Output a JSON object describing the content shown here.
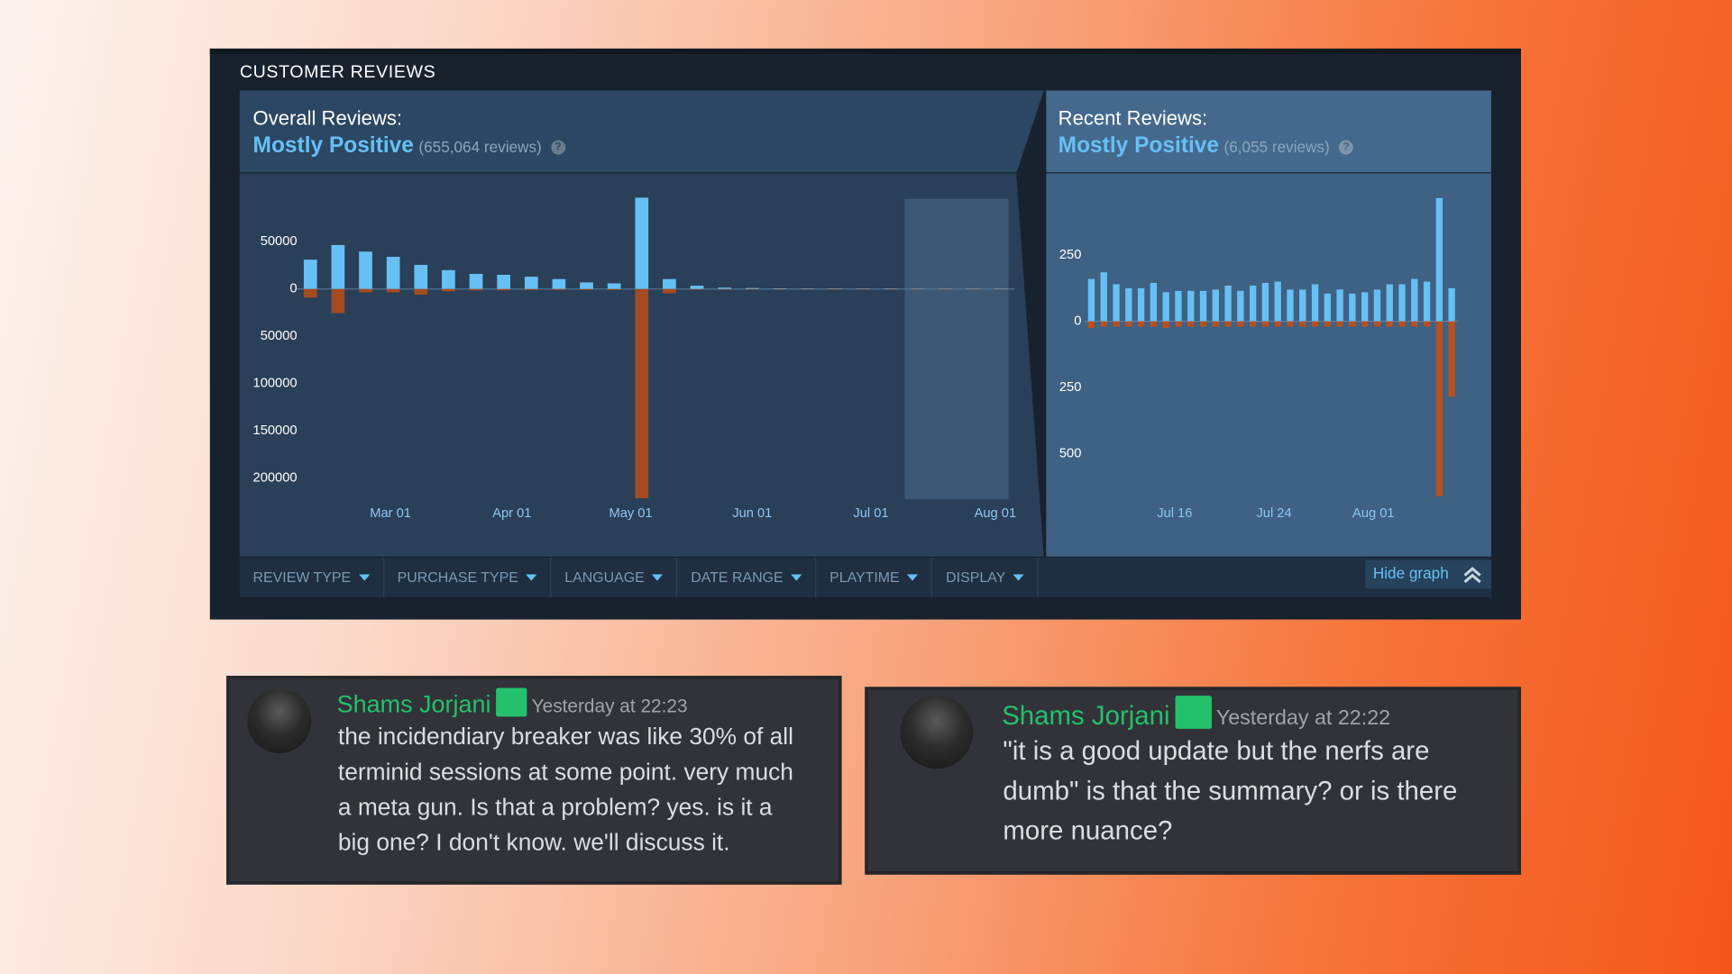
{
  "header": {
    "title": "CUSTOMER REVIEWS"
  },
  "summaries": [
    {
      "label": "Overall Reviews:",
      "rating": "Mostly Positive",
      "count": "(655,064 reviews)",
      "help": "?"
    },
    {
      "label": "Recent Reviews:",
      "rating": "Mostly Positive",
      "count": "(6,055 reviews)",
      "help": "?"
    }
  ],
  "chart_data": [
    {
      "type": "bar",
      "categories": [
        null,
        null,
        null,
        null,
        null,
        null,
        null,
        null,
        null,
        null,
        null,
        null,
        null,
        null,
        null,
        null,
        null,
        null,
        null,
        null,
        null,
        null,
        null,
        null,
        null,
        null
      ],
      "series": [
        {
          "color": "#66c0f4",
          "values": [
            31000,
            46500,
            39500,
            34000,
            25500,
            20000,
            16000,
            15000,
            13000,
            10500,
            7000,
            6000,
            96500,
            10500,
            3500,
            1500,
            1000,
            700,
            600,
            600,
            500,
            500,
            500,
            500,
            500,
            500
          ]
        },
        {
          "color": "#a44b22",
          "values": [
            -9000,
            -25500,
            -3500,
            -3500,
            -6000,
            -2500,
            -1500,
            -1500,
            -1000,
            -1000,
            -1000,
            -1000,
            -221000,
            -4500,
            -500,
            -300,
            -300,
            -300,
            -300,
            -300,
            -300,
            -300,
            -300,
            -300,
            -300,
            -300
          ]
        }
      ],
      "xlim": [
        -0.5,
        25.5
      ],
      "xticks": [
        {
          "value": 2.9,
          "label": "Mar 01"
        },
        {
          "value": 7.3,
          "label": "Apr 01"
        },
        {
          "value": 11.6,
          "label": "May 01"
        },
        {
          "value": 16,
          "label": "Jun 01"
        },
        {
          "value": 20.3,
          "label": "Jul 01"
        },
        {
          "value": 24.8,
          "label": "Aug 01"
        }
      ],
      "ylim": [
        -222000,
        100000
      ],
      "yticks": [
        50000,
        0,
        {
          "value": -50000,
          "label": "50000"
        },
        {
          "value": -100000,
          "label": "100000"
        },
        {
          "value": -150000,
          "label": "150000"
        },
        {
          "value": -200000,
          "label": "200000"
        }
      ]
    },
    {
      "type": "bar",
      "categories": [
        null,
        null,
        null,
        null,
        null,
        null,
        null,
        null,
        null,
        null,
        null,
        null,
        null,
        null,
        null,
        null,
        null,
        null,
        null,
        null,
        null,
        null,
        null,
        null,
        null,
        null,
        null,
        null,
        null,
        null
      ],
      "series": [
        {
          "color": "#66c0f4",
          "values": [
            160,
            185,
            140,
            125,
            125,
            145,
            110,
            115,
            115,
            115,
            120,
            135,
            115,
            135,
            145,
            150,
            120,
            120,
            140,
            105,
            120,
            105,
            110,
            120,
            140,
            140,
            160,
            150,
            465,
            125
          ]
        },
        {
          "color": "#b8501f",
          "values": [
            -25,
            -20,
            -20,
            -20,
            -20,
            -20,
            -25,
            -20,
            -20,
            -20,
            -20,
            -20,
            -20,
            -20,
            -20,
            -20,
            -20,
            -20,
            -20,
            -20,
            -20,
            -20,
            -20,
            -20,
            -20,
            -20,
            -20,
            -20,
            -660,
            -285
          ]
        }
      ],
      "xlim": [
        -0.5,
        29.5
      ],
      "xticks": [
        {
          "value": 6.7,
          "label": "Jul 16"
        },
        {
          "value": 14.7,
          "label": "Jul 24"
        },
        {
          "value": 22.7,
          "label": "Aug 01"
        }
      ],
      "ylim": [
        -680,
        480
      ],
      "yticks": [
        250,
        0,
        {
          "value": -250,
          "label": "250"
        },
        {
          "value": -500,
          "label": "500"
        }
      ]
    }
  ],
  "filters": [
    "REVIEW TYPE",
    "PURCHASE TYPE",
    "LANGUAGE",
    "DATE RANGE",
    "PLAYTIME",
    "DISPLAY"
  ],
  "hide_graph": "Hide graph",
  "messages": [
    {
      "author": "Shams Jorjani",
      "time": "Yesterday at 22:23",
      "lines": [
        "the incidendiary breaker was like 30% of all",
        "terminid sessions at some point. very much",
        "a meta gun. Is that a problem? yes. is it a",
        "big one? I don't know. we'll discuss it."
      ]
    },
    {
      "author": "Shams Jorjani",
      "time": "Yesterday at 22:22",
      "lines": [
        "\"it is a good update but the nerfs are",
        "dumb\" is that the summary? or is there",
        "more nuance?"
      ]
    }
  ]
}
